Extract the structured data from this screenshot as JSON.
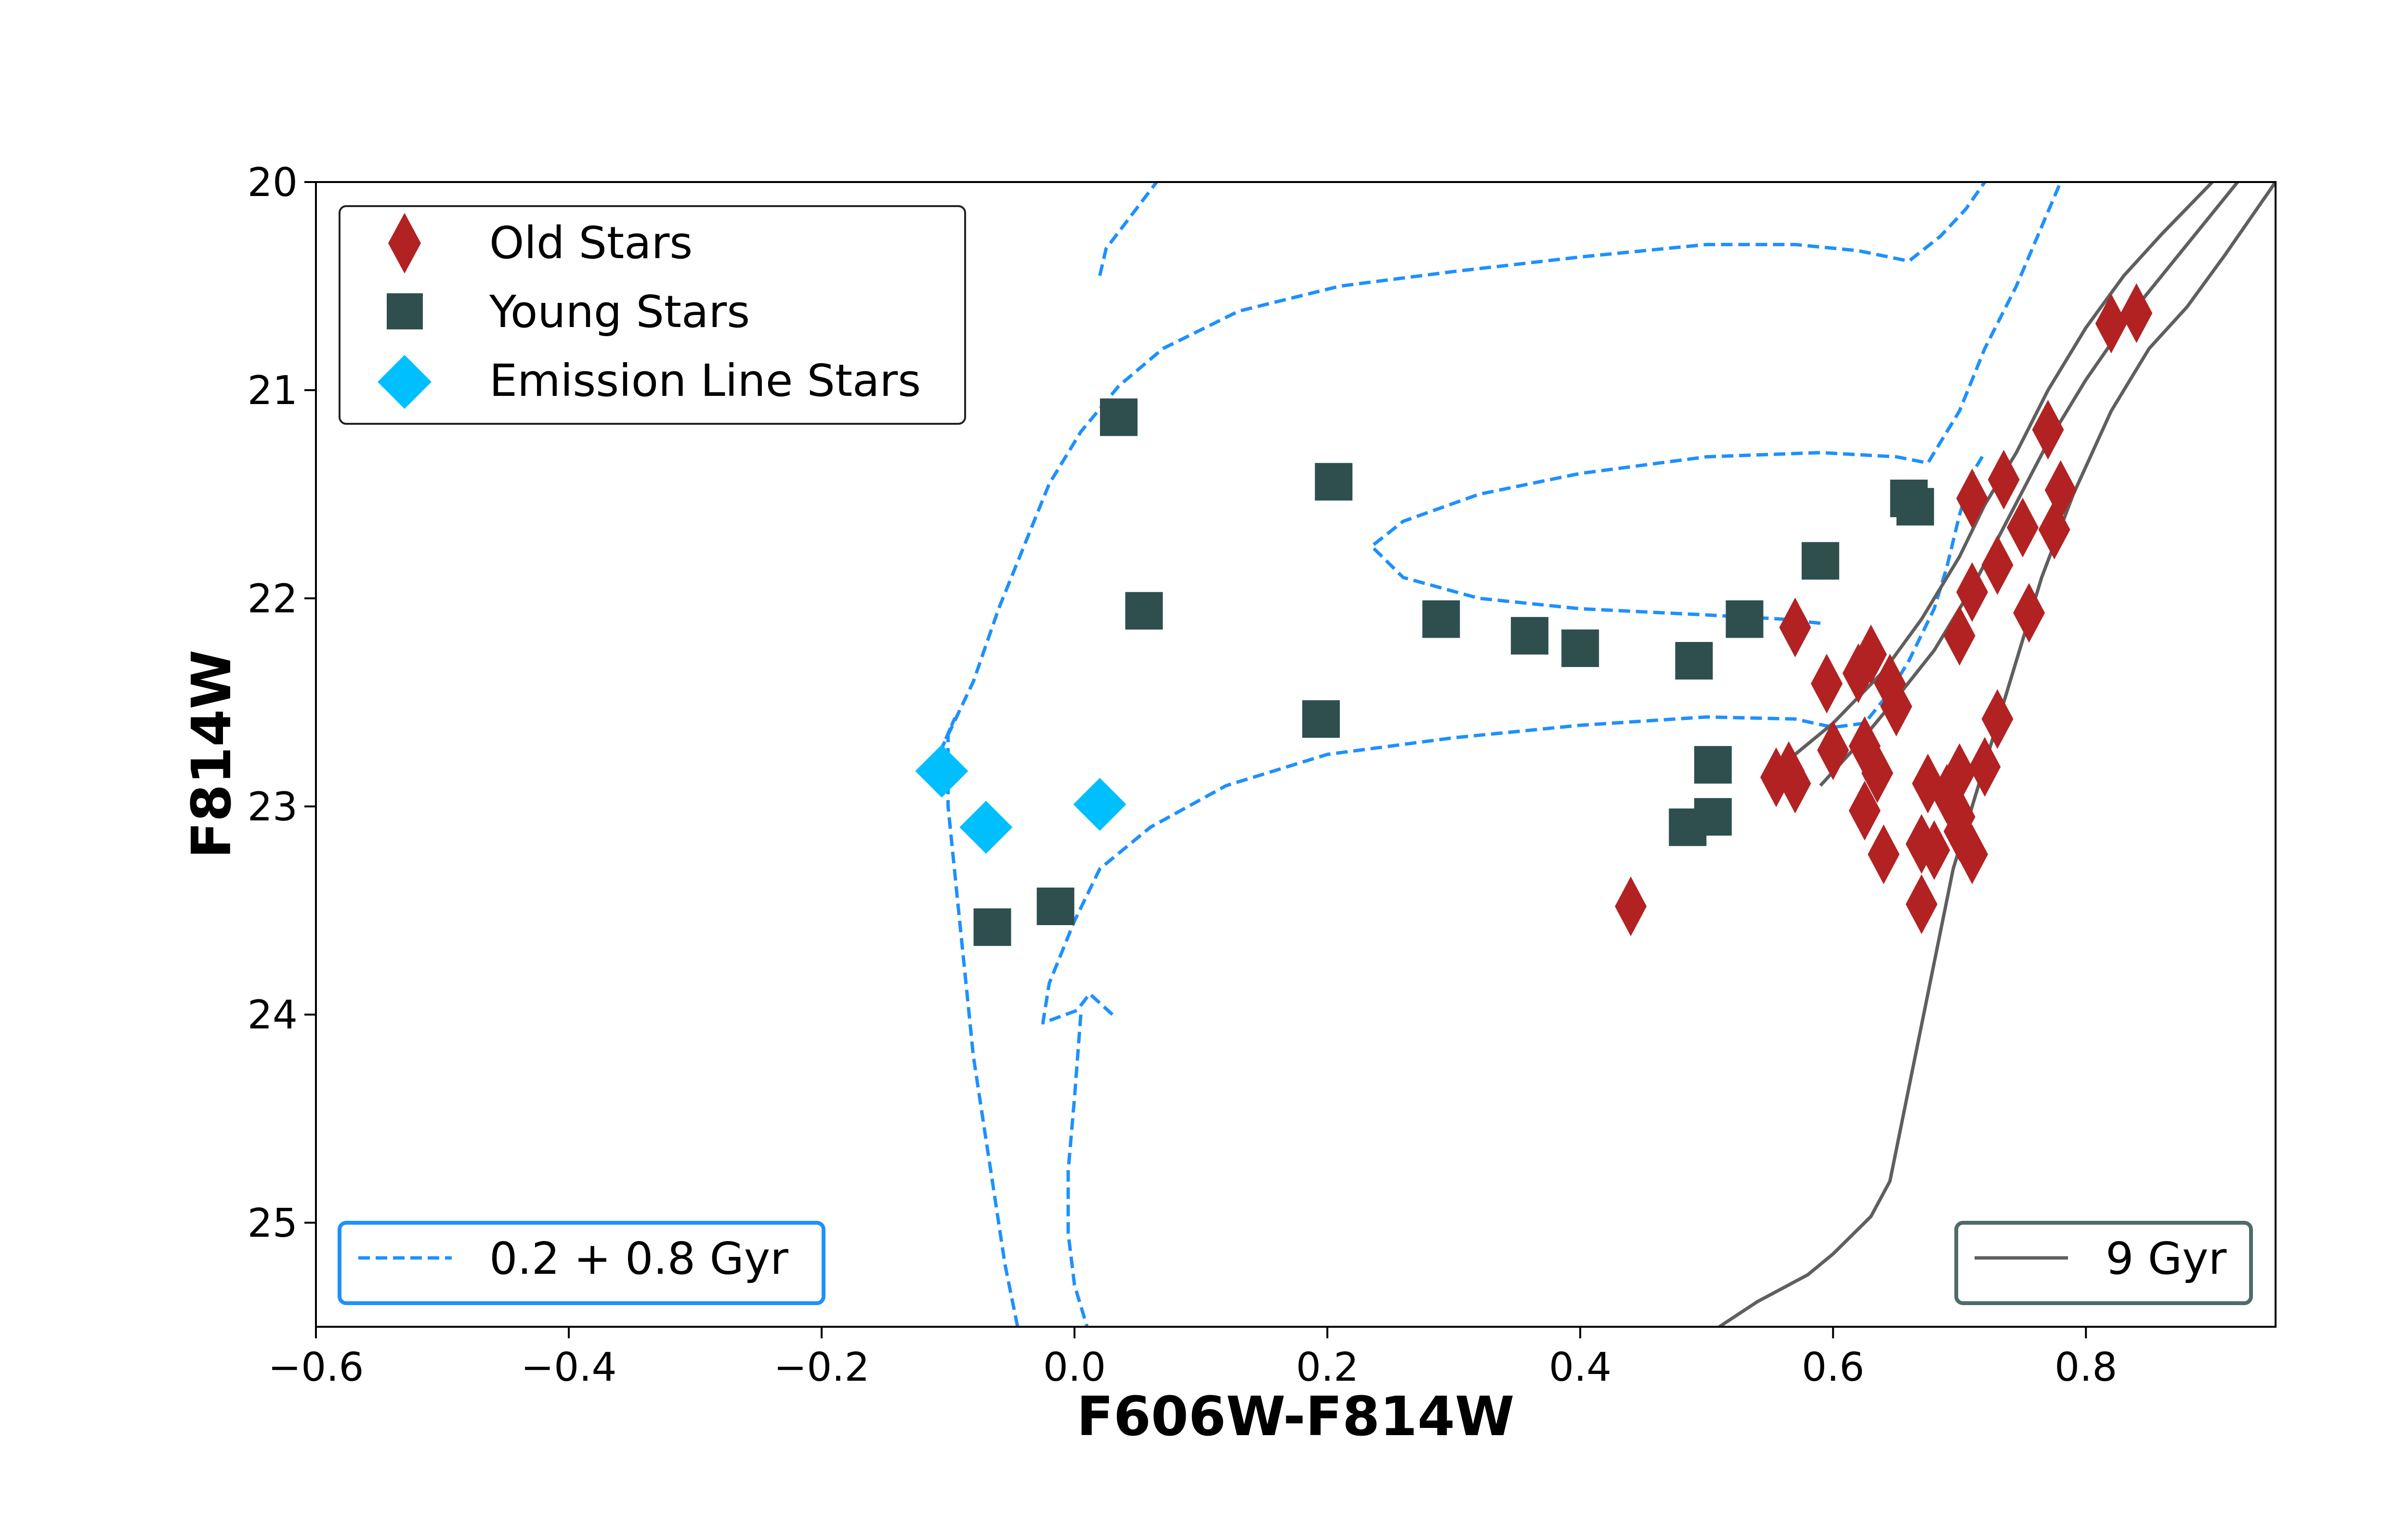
{
  "chart_data": {
    "type": "scatter",
    "xlabel": "F606W-F814W",
    "ylabel": "F814W",
    "xlim": [
      -0.6,
      0.95
    ],
    "ylim": [
      25.5,
      20.0
    ],
    "y_inverted": true,
    "grid": false,
    "xticks": [
      -0.6,
      -0.4,
      -0.2,
      0.0,
      0.2,
      0.4,
      0.6,
      0.8
    ],
    "xtick_labels": [
      "−0.6",
      "−0.4",
      "−0.2",
      "0.0",
      "0.2",
      "0.4",
      "0.6",
      "0.8"
    ],
    "yticks": [
      20,
      21,
      22,
      23,
      24,
      25
    ],
    "ytick_labels": [
      "20",
      "21",
      "22",
      "23",
      "24",
      "25"
    ],
    "legend_markers": {
      "placement": "top-left",
      "entries": [
        "Old Stars",
        "Young Stars",
        "Emission Line Stars"
      ]
    },
    "legend_young_iso": {
      "placement": "bottom-left",
      "entries": [
        "0.2 + 0.8 Gyr"
      ]
    },
    "legend_old_iso": {
      "placement": "bottom-right",
      "entries": [
        "9 Gyr"
      ]
    },
    "series": [
      {
        "name": "Old Stars",
        "marker": "thin-diamond",
        "color": "#b22222",
        "points": [
          [
            0.82,
            20.68
          ],
          [
            0.84,
            20.63
          ],
          [
            0.77,
            21.19
          ],
          [
            0.735,
            21.43
          ],
          [
            0.71,
            21.52
          ],
          [
            0.78,
            21.48
          ],
          [
            0.75,
            21.66
          ],
          [
            0.775,
            21.67
          ],
          [
            0.73,
            21.84
          ],
          [
            0.71,
            21.97
          ],
          [
            0.755,
            22.07
          ],
          [
            0.7,
            22.18
          ],
          [
            0.57,
            22.14
          ],
          [
            0.63,
            22.27
          ],
          [
            0.62,
            22.36
          ],
          [
            0.595,
            22.41
          ],
          [
            0.645,
            22.41
          ],
          [
            0.65,
            22.52
          ],
          [
            0.73,
            22.58
          ],
          [
            0.6,
            22.73
          ],
          [
            0.625,
            22.71
          ],
          [
            0.635,
            22.84
          ],
          [
            0.555,
            22.86
          ],
          [
            0.565,
            22.83
          ],
          [
            0.57,
            22.89
          ],
          [
            0.72,
            22.81
          ],
          [
            0.7,
            22.84
          ],
          [
            0.675,
            22.89
          ],
          [
            0.69,
            22.94
          ],
          [
            0.7,
            23.05
          ],
          [
            0.625,
            23.02
          ],
          [
            0.7,
            23.12
          ],
          [
            0.67,
            23.18
          ],
          [
            0.68,
            23.21
          ],
          [
            0.64,
            23.23
          ],
          [
            0.71,
            23.23
          ],
          [
            0.67,
            23.47
          ],
          [
            0.44,
            23.48
          ]
        ]
      },
      {
        "name": "Young Stars",
        "marker": "square",
        "color": "#2f4f4f",
        "points": [
          [
            0.035,
            21.13
          ],
          [
            0.205,
            21.44
          ],
          [
            0.66,
            21.52
          ],
          [
            0.665,
            21.56
          ],
          [
            0.59,
            21.82
          ],
          [
            0.055,
            22.06
          ],
          [
            0.29,
            22.1
          ],
          [
            0.53,
            22.1
          ],
          [
            0.36,
            22.18
          ],
          [
            0.4,
            22.24
          ],
          [
            0.49,
            22.3
          ],
          [
            0.195,
            22.58
          ],
          [
            0.505,
            22.8
          ],
          [
            0.505,
            23.05
          ],
          [
            0.485,
            23.1
          ],
          [
            -0.015,
            23.48
          ],
          [
            -0.065,
            23.58
          ]
        ]
      },
      {
        "name": "Emission Line Stars",
        "marker": "diamond",
        "color": "#00bfff",
        "points": [
          [
            -0.105,
            22.83
          ],
          [
            -0.07,
            23.1
          ],
          [
            0.02,
            22.99
          ]
        ]
      }
    ],
    "isochrones": [
      {
        "name": "0.2 + 0.8 Gyr",
        "style": "dashed",
        "color": "#1e90ff",
        "segments": [
          [
            [
              0.02,
              20.45
            ],
            [
              0.025,
              20.32
            ],
            [
              0.04,
              20.2
            ],
            [
              0.065,
              20.0
            ]
          ],
          [
            [
              0.005,
              24.0
            ],
            [
              0.0,
              24.4
            ],
            [
              -0.005,
              24.75
            ],
            [
              -0.005,
              25.05
            ],
            [
              0.0,
              25.3
            ],
            [
              0.01,
              25.5
            ]
          ],
          [
            [
              -0.045,
              25.5
            ],
            [
              -0.055,
              25.2
            ],
            [
              -0.065,
              24.8
            ],
            [
              -0.07,
              24.6
            ],
            [
              -0.08,
              24.2
            ],
            [
              -0.085,
              23.9
            ],
            [
              -0.09,
              23.6
            ],
            [
              -0.095,
              23.3
            ],
            [
              -0.1,
              23.0
            ],
            [
              -0.1,
              22.65
            ],
            [
              -0.095,
              22.58
            ],
            [
              -0.105,
              22.72
            ],
            [
              -0.08,
              22.4
            ],
            [
              -0.06,
              22.05
            ],
            [
              -0.04,
              21.75
            ],
            [
              -0.02,
              21.45
            ],
            [
              0.005,
              21.2
            ],
            [
              0.035,
              20.98
            ],
            [
              0.07,
              20.8
            ],
            [
              0.13,
              20.62
            ],
            [
              0.21,
              20.5
            ],
            [
              0.3,
              20.43
            ],
            [
              0.4,
              20.36
            ],
            [
              0.5,
              20.3
            ],
            [
              0.57,
              20.3
            ],
            [
              0.62,
              20.33
            ],
            [
              0.66,
              20.38
            ],
            [
              0.685,
              20.26
            ],
            [
              0.705,
              20.13
            ],
            [
              0.72,
              20.0
            ]
          ],
          [
            [
              0.03,
              24.0
            ],
            [
              0.012,
              23.9
            ],
            [
              0.002,
              23.98
            ],
            [
              -0.025,
              24.04
            ],
            [
              -0.02,
              23.85
            ],
            [
              0.0,
              23.55
            ],
            [
              0.02,
              23.3
            ],
            [
              0.06,
              23.1
            ],
            [
              0.12,
              22.9
            ],
            [
              0.2,
              22.75
            ],
            [
              0.3,
              22.67
            ],
            [
              0.4,
              22.61
            ],
            [
              0.5,
              22.57
            ],
            [
              0.57,
              22.58
            ],
            [
              0.6,
              22.62
            ],
            [
              0.625,
              22.6
            ],
            [
              0.645,
              22.45
            ],
            [
              0.66,
              22.3
            ],
            [
              0.68,
              22.05
            ],
            [
              0.69,
              21.85
            ],
            [
              0.7,
              21.6
            ],
            [
              0.71,
              21.4
            ],
            [
              0.72,
              21.3
            ]
          ],
          [
            [
              0.59,
              22.12
            ],
            [
              0.56,
              22.1
            ],
            [
              0.5,
              22.08
            ],
            [
              0.4,
              22.05
            ],
            [
              0.32,
              22.0
            ],
            [
              0.26,
              21.9
            ],
            [
              0.235,
              21.75
            ],
            [
              0.26,
              21.63
            ],
            [
              0.32,
              21.5
            ],
            [
              0.4,
              21.4
            ],
            [
              0.5,
              21.32
            ],
            [
              0.59,
              21.3
            ],
            [
              0.65,
              21.32
            ],
            [
              0.675,
              21.35
            ],
            [
              0.685,
              21.25
            ],
            [
              0.7,
              21.1
            ],
            [
              0.72,
              20.8
            ],
            [
              0.745,
              20.5
            ],
            [
              0.78,
              20.0
            ]
          ]
        ]
      },
      {
        "name": "9 Gyr",
        "style": "solid",
        "color": "#5f5f5f",
        "segments": [
          [
            [
              0.51,
              25.5
            ],
            [
              0.54,
              25.38
            ],
            [
              0.58,
              25.25
            ],
            [
              0.6,
              25.15
            ],
            [
              0.63,
              24.97
            ],
            [
              0.645,
              24.8
            ],
            [
              0.655,
              24.5
            ],
            [
              0.665,
              24.2
            ],
            [
              0.675,
              23.9
            ],
            [
              0.685,
              23.6
            ],
            [
              0.695,
              23.3
            ],
            [
              0.71,
              23.0
            ],
            [
              0.725,
              22.7
            ],
            [
              0.745,
              22.3
            ],
            [
              0.765,
              21.9
            ],
            [
              0.79,
              21.5
            ],
            [
              0.82,
              21.1
            ],
            [
              0.85,
              20.8
            ],
            [
              0.88,
              20.6
            ],
            [
              0.91,
              20.35
            ],
            [
              0.95,
              20.0
            ]
          ],
          [
            [
              0.57,
              22.75
            ],
            [
              0.6,
              22.6
            ],
            [
              0.64,
              22.35
            ],
            [
              0.67,
              22.1
            ],
            [
              0.7,
              21.8
            ],
            [
              0.72,
              21.55
            ],
            [
              0.745,
              21.3
            ],
            [
              0.77,
              21.0
            ],
            [
              0.8,
              20.7
            ],
            [
              0.83,
              20.45
            ],
            [
              0.86,
              20.25
            ],
            [
              0.9,
              20.0
            ]
          ],
          [
            [
              0.59,
              22.9
            ],
            [
              0.62,
              22.7
            ],
            [
              0.65,
              22.48
            ],
            [
              0.68,
              22.25
            ],
            [
              0.71,
              21.95
            ],
            [
              0.74,
              21.6
            ],
            [
              0.77,
              21.25
            ],
            [
              0.8,
              20.95
            ],
            [
              0.84,
              20.6
            ],
            [
              0.88,
              20.3
            ],
            [
              0.92,
              20.0
            ]
          ]
        ]
      }
    ]
  }
}
